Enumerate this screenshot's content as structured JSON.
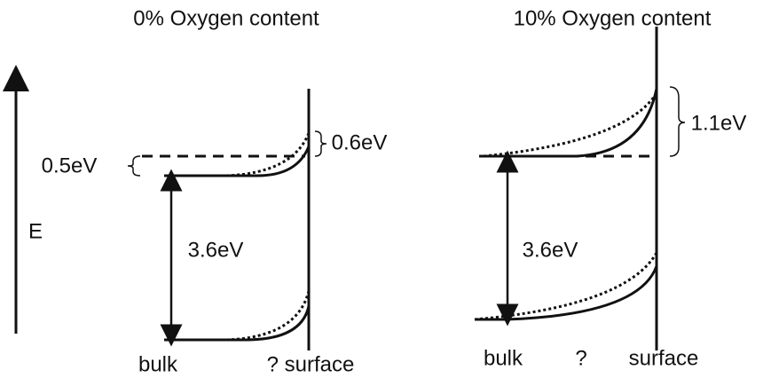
{
  "axis": {
    "label": "E"
  },
  "panels": [
    {
      "title": "0% Oxygen content",
      "gap": "3.6eV",
      "offsets": [
        "0.5eV",
        "0.6eV"
      ],
      "x_labels": [
        "bulk",
        "? surface"
      ]
    },
    {
      "title": "10% Oxygen content",
      "gap": "3.6eV",
      "offsets": [
        "1.1eV"
      ],
      "x_labels": [
        "bulk",
        "?",
        "surface"
      ]
    }
  ]
}
